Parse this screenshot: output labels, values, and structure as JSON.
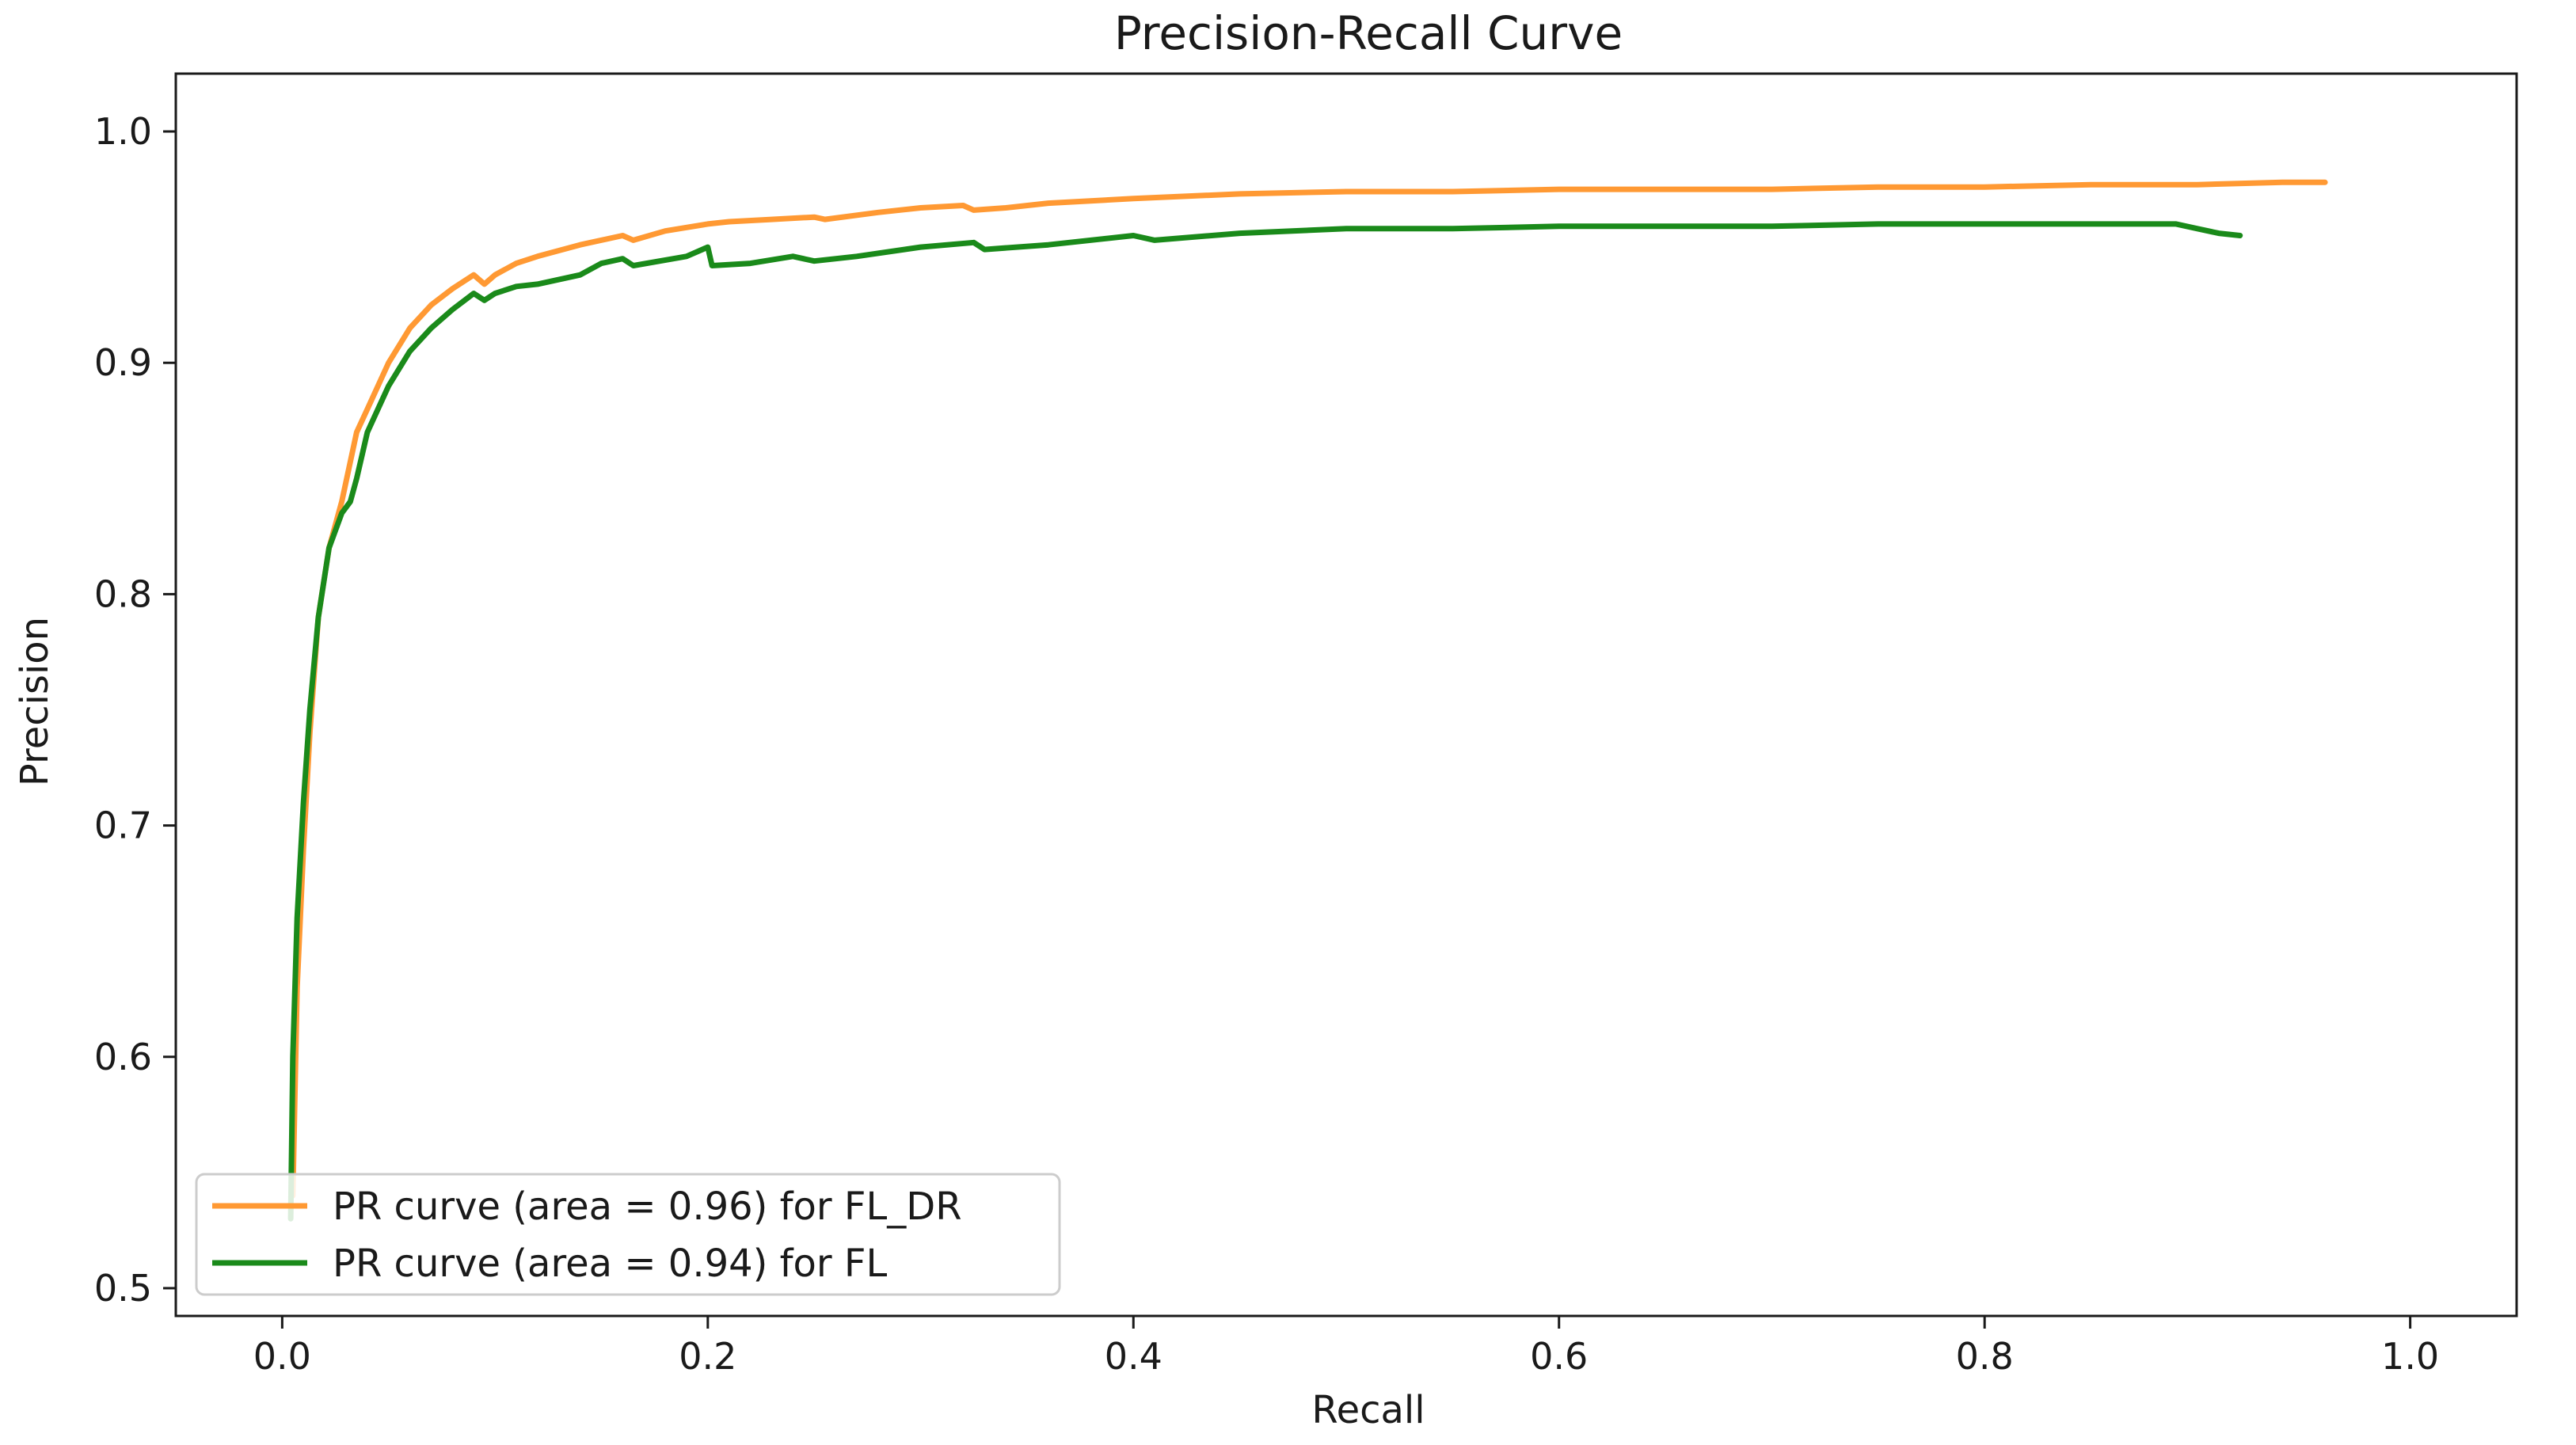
{
  "chart_data": {
    "type": "line",
    "title": "Precision-Recall Curve",
    "xlabel": "Recall",
    "ylabel": "Precision",
    "xlim": [
      -0.05,
      1.05
    ],
    "ylim": [
      0.488,
      1.025
    ],
    "grid": false,
    "legend_position": "lower-left",
    "xticks": [
      0.0,
      0.2,
      0.4,
      0.6,
      0.8,
      1.0
    ],
    "xtick_labels": [
      "0.0",
      "0.2",
      "0.4",
      "0.6",
      "0.8",
      "1.0"
    ],
    "yticks": [
      0.5,
      0.6,
      0.7,
      0.8,
      0.9,
      1.0
    ],
    "ytick_labels": [
      "0.5",
      "0.6",
      "0.7",
      "0.8",
      "0.9",
      "1.0"
    ],
    "series": [
      {
        "name": "PR curve (area = 0.96) for FL_DR",
        "color": "#ff9933",
        "x": [
          0.005,
          0.007,
          0.01,
          0.013,
          0.017,
          0.022,
          0.028,
          0.035,
          0.04,
          0.05,
          0.06,
          0.07,
          0.08,
          0.09,
          0.095,
          0.1,
          0.11,
          0.12,
          0.14,
          0.16,
          0.165,
          0.18,
          0.2,
          0.21,
          0.23,
          0.25,
          0.255,
          0.28,
          0.3,
          0.32,
          0.325,
          0.34,
          0.36,
          0.4,
          0.45,
          0.5,
          0.55,
          0.6,
          0.65,
          0.7,
          0.75,
          0.8,
          0.85,
          0.9,
          0.94,
          0.96
        ],
        "y": [
          0.54,
          0.63,
          0.69,
          0.74,
          0.79,
          0.82,
          0.84,
          0.87,
          0.88,
          0.9,
          0.915,
          0.925,
          0.932,
          0.938,
          0.934,
          0.938,
          0.943,
          0.946,
          0.951,
          0.955,
          0.953,
          0.957,
          0.96,
          0.961,
          0.962,
          0.963,
          0.962,
          0.965,
          0.967,
          0.968,
          0.966,
          0.967,
          0.969,
          0.971,
          0.973,
          0.974,
          0.974,
          0.975,
          0.975,
          0.975,
          0.976,
          0.976,
          0.977,
          0.977,
          0.978,
          0.978
        ]
      },
      {
        "name": "PR curve (area = 0.94) for FL",
        "color": "#1a8a1a",
        "x": [
          0.004,
          0.005,
          0.007,
          0.01,
          0.013,
          0.017,
          0.022,
          0.028,
          0.032,
          0.035,
          0.04,
          0.05,
          0.06,
          0.07,
          0.08,
          0.09,
          0.095,
          0.1,
          0.11,
          0.12,
          0.14,
          0.15,
          0.16,
          0.165,
          0.19,
          0.2,
          0.202,
          0.22,
          0.24,
          0.25,
          0.27,
          0.3,
          0.325,
          0.33,
          0.36,
          0.4,
          0.41,
          0.45,
          0.5,
          0.55,
          0.6,
          0.65,
          0.7,
          0.75,
          0.8,
          0.85,
          0.89,
          0.9,
          0.91,
          0.92
        ],
        "y": [
          0.53,
          0.6,
          0.66,
          0.71,
          0.75,
          0.79,
          0.82,
          0.835,
          0.84,
          0.85,
          0.87,
          0.89,
          0.905,
          0.915,
          0.923,
          0.93,
          0.927,
          0.93,
          0.933,
          0.934,
          0.938,
          0.943,
          0.945,
          0.942,
          0.946,
          0.95,
          0.942,
          0.943,
          0.946,
          0.944,
          0.946,
          0.95,
          0.952,
          0.949,
          0.951,
          0.955,
          0.953,
          0.956,
          0.958,
          0.958,
          0.959,
          0.959,
          0.959,
          0.96,
          0.96,
          0.96,
          0.96,
          0.958,
          0.956,
          0.955
        ]
      }
    ]
  }
}
